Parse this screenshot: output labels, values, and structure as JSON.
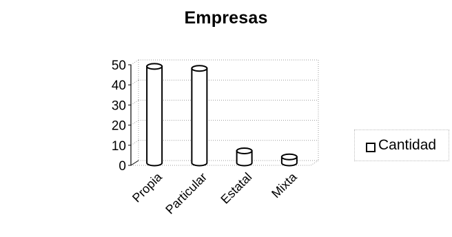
{
  "chart_data": {
    "type": "bar",
    "title": "Empresas",
    "categories": [
      "Propia",
      "Particular",
      "Estatal",
      "Mixta"
    ],
    "series": [
      {
        "name": "Cantidad",
        "values": [
          48,
          47,
          6,
          3
        ]
      }
    ],
    "ylim": [
      0,
      50
    ],
    "yticks": [
      0,
      10,
      20,
      30,
      40,
      50
    ],
    "xlabel": "",
    "ylabel": "",
    "grid": true,
    "legend": "right",
    "style": "3d-cylinder",
    "colors": {
      "fill": "#ffffff",
      "stroke": "#000000",
      "grid": "#9a9a9a"
    }
  }
}
